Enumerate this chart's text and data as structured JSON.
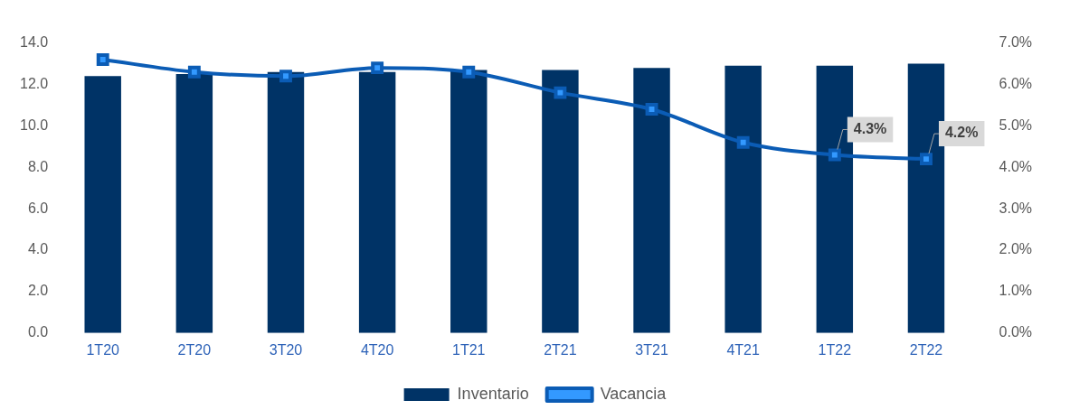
{
  "chart_data": {
    "type": "bar",
    "categories": [
      "1T20",
      "2T20",
      "3T20",
      "4T20",
      "1T21",
      "2T21",
      "3T21",
      "4T21",
      "1T22",
      "2T22"
    ],
    "series": [
      {
        "name": "Inventario",
        "color": "#003366",
        "values": [
          12.4,
          12.5,
          12.6,
          12.6,
          12.7,
          12.7,
          12.8,
          12.9,
          12.9,
          13.0
        ]
      },
      {
        "name": "Vacancia",
        "type": "line",
        "axis": "y2",
        "color": "#0b5cb5",
        "marker": "square",
        "values": [
          6.6,
          6.3,
          6.2,
          6.4,
          6.3,
          5.8,
          5.4,
          4.6,
          4.3,
          4.2
        ],
        "value_labels": [
          null,
          null,
          null,
          null,
          null,
          null,
          null,
          null,
          "4.3%",
          "4.2%"
        ]
      }
    ],
    "ylim": [
      0,
      14
    ],
    "yticks": [
      {
        "value": 0,
        "label": "0.0"
      },
      {
        "value": 2,
        "label": "2.0"
      },
      {
        "value": 4,
        "label": "4.0"
      },
      {
        "value": 6,
        "label": "6.0"
      },
      {
        "value": 8,
        "label": "8.0"
      },
      {
        "value": 10,
        "label": "10.0"
      },
      {
        "value": 12,
        "label": "12.0"
      },
      {
        "value": 14,
        "label": "14.0"
      }
    ],
    "y2lim": [
      0,
      7
    ],
    "y2ticks": [
      {
        "value": 0,
        "label": "0.0%"
      },
      {
        "value": 1,
        "label": "1.0%"
      },
      {
        "value": 2,
        "label": "2.0%"
      },
      {
        "value": 3,
        "label": "3.0%"
      },
      {
        "value": 4,
        "label": "4.0%"
      },
      {
        "value": 5,
        "label": "5.0%"
      },
      {
        "value": 6,
        "label": "6.0%"
      },
      {
        "value": 7,
        "label": "7.0%"
      }
    ],
    "grid": false,
    "legend": "bottom"
  }
}
